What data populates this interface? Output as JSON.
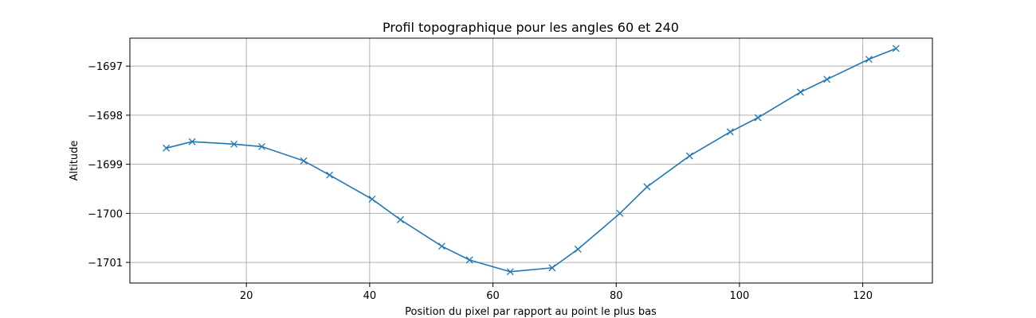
{
  "chart_data": {
    "type": "line",
    "title": "Profil topographique pour les angles 60 et 240",
    "xlabel": "Position du pixel par rapport au point le plus bas",
    "ylabel": "Altitude",
    "xlim": [
      1.1,
      131.3
    ],
    "ylim": [
      -1701.42,
      -1696.43
    ],
    "xticks": [
      20,
      40,
      60,
      80,
      100,
      120
    ],
    "xtick_labels": [
      "20",
      "40",
      "60",
      "80",
      "100",
      "120"
    ],
    "yticks": [
      -1701,
      -1700,
      -1699,
      -1698,
      -1697
    ],
    "ytick_labels": [
      "−1701",
      "−1700",
      "−1699",
      "−1698",
      "−1697"
    ],
    "grid": true,
    "marker": "x",
    "color": "#1f77b4",
    "x": [
      7.0,
      11.2,
      18.0,
      22.5,
      29.3,
      33.5,
      40.4,
      45.0,
      51.7,
      56.2,
      62.8,
      69.6,
      73.8,
      80.6,
      85.0,
      91.9,
      98.5,
      103.0,
      109.9,
      114.2,
      121.0,
      125.4
    ],
    "y": [
      -1698.67,
      -1698.54,
      -1698.59,
      -1698.64,
      -1698.93,
      -1699.22,
      -1699.71,
      -1700.13,
      -1700.67,
      -1700.95,
      -1701.19,
      -1701.11,
      -1700.73,
      -1700.0,
      -1699.46,
      -1698.83,
      -1698.34,
      -1698.05,
      -1697.53,
      -1697.27,
      -1696.86,
      -1696.64
    ]
  }
}
